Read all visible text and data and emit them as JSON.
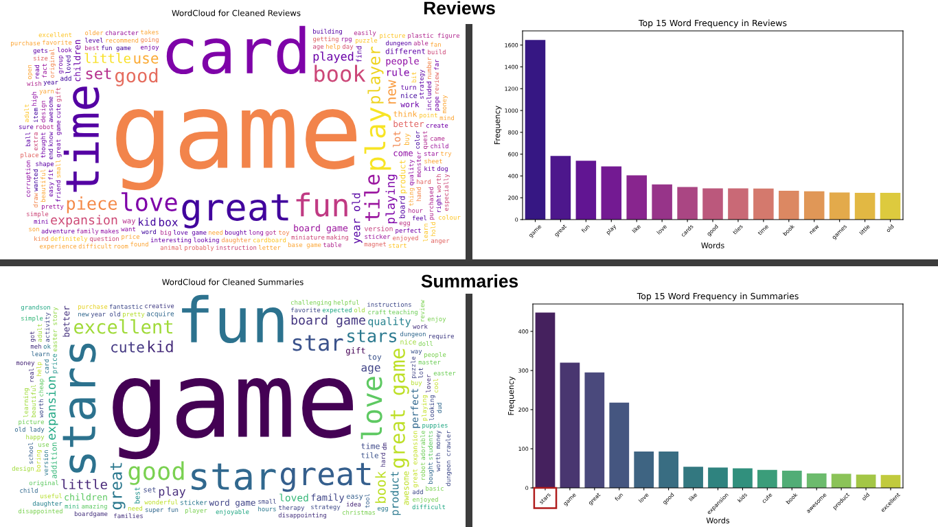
{
  "chart_data": [
    {
      "type": "other",
      "title": "WordCloud for Cleaned Reviews",
      "categories": [
        "game",
        "card",
        "time",
        "great",
        "fun",
        "play",
        "love",
        "book",
        "tile",
        "good",
        "piece",
        "player",
        "set",
        "use",
        "new",
        "little",
        "expansion",
        "playing",
        "played",
        "box",
        "year old",
        "kid",
        "rule",
        "lot",
        "people",
        "board game",
        "children",
        "better",
        "come",
        "product",
        "think",
        "work",
        "board",
        "different",
        "way",
        "find",
        "nice",
        "version",
        "buy",
        "turn",
        "add",
        "loved",
        "egg",
        "want",
        "quality",
        "enjoy",
        "fun game",
        "great game",
        "bought",
        "age",
        "small",
        "look",
        "long",
        "cute",
        "need",
        "got",
        "thing",
        "love game",
        "help",
        "friend",
        "word",
        "makes",
        "color",
        "best",
        "family",
        "gift",
        "perfect",
        "adventure",
        "monster",
        "hour",
        "pretty",
        "group",
        "toy",
        "miniature",
        "bit",
        "dungeon",
        "recommend",
        "know",
        "year",
        "robot",
        "end",
        "making",
        "hard",
        "awesome",
        "day",
        "shape",
        "hand",
        "sticker",
        "feel",
        "fit",
        "price",
        "point",
        "easy",
        "big",
        "daughter",
        "strategy",
        "getting",
        "favorite",
        "original",
        "puzzle",
        "looking",
        "quest",
        "yarn",
        "cardboard",
        "beautiful",
        "going",
        "interesting",
        "included",
        "able",
        "star",
        "thought",
        "level",
        "question",
        "purchased",
        "enjoyed",
        "definitely",
        "design",
        "sheet",
        "kit",
        "fact",
        "create",
        "base game",
        "number",
        "simple",
        "came",
        "learn",
        "child",
        "picture",
        "extra",
        "mini",
        "size",
        "item",
        "gets",
        "character",
        "wanted",
        "found",
        "place",
        "page",
        "wish",
        "kind",
        "high",
        "rpg",
        "plastic figure",
        "review",
        "table",
        "excellent",
        "read",
        "building",
        "instruction",
        "worth",
        "takes",
        "probably",
        "draw",
        "magnet",
        "build",
        "hold",
        "easily",
        "letter",
        "right",
        "dog",
        "sure",
        "corruption",
        "older",
        "fan",
        "far",
        "animal",
        "room",
        "ball",
        "difficult",
        "mind",
        "money",
        "start",
        "try",
        "adult",
        "anger",
        "son",
        "especially",
        "experience",
        "purchase",
        "open",
        "colour"
      ],
      "colors": [
        "#f2844b",
        "#7e03a8",
        "#5402a3",
        "#41049d",
        "#c03a83",
        "#f7e425",
        "#7e03a8",
        "#cc4778",
        "#9a169f",
        "#e56b5d",
        "#f48a48",
        "#eed320",
        "#b52f8c",
        "#fbaa35",
        "#f99b3e",
        "#f8e024",
        "#cd4a76",
        "#7e03a8",
        "#6a00a8",
        "#41049d",
        "#5402a3",
        "#41049d",
        "#7e03a8",
        "#f2844b",
        "#8f0da4",
        "#9c179e",
        "#6a00a8",
        "#e16462",
        "#8f0da4",
        "#fcce25",
        "#fca636",
        "#6a00a8",
        "#5402a3",
        "#5c01a6",
        "#b52f8c",
        "#5c01a6",
        "#41049d",
        "#c5407e",
        "#fdb32f",
        "#5c01a6",
        "#3e049c",
        "#41049d",
        "#bd3786",
        "#8f0da4",
        "#8f0da4",
        "#7201a8",
        "#41049d",
        "#6a00a8",
        "#6a00a8",
        "#cc4778",
        "#fdb42f",
        "#7201a8",
        "#8f0da4",
        "#6a00a8",
        "#fca636",
        "#b12a90",
        "#fca636",
        "#5c01a6",
        "#fca636",
        "#6a00a8",
        "#3e049c",
        "#8f0da4",
        "#41049d",
        "#b12a90",
        "#9c179e",
        "#cc4778",
        "#7201a8",
        "#7201a8",
        "#9c179e",
        "#b12a90",
        "#9c179e",
        "#6a00a8",
        "#f2844b",
        "#cc4778",
        "#fdc527",
        "#5402a3",
        "#fca636",
        "#5c01a6",
        "#41049d",
        "#b12a90",
        "#5402a3",
        "#cc4778",
        "#e16462",
        "#5c01a6",
        "#d5536f",
        "#5c01a6",
        "#f2844b",
        "#9c179e",
        "#5402a3",
        "#6a00a8",
        "#fca636",
        "#fdc527",
        "#6a00a8",
        "#b12a90",
        "#f89540",
        "#5c01a6",
        "#e16462",
        "#fca636",
        "#f2844b",
        "#fdc527",
        "#6a00a8",
        "#b12a90",
        "#fca636",
        "#fdc527",
        "#fca636",
        "#f2844b",
        "#6a00a8",
        "#6a00a8",
        "#b12a90",
        "#9c179e",
        "#7201a8",
        "#5402a3",
        "#cc4778",
        "#b12a90",
        "#e16462",
        "#fdc527",
        "#9c179e",
        "#fca636",
        "#7201a8",
        "#9c179e",
        "#7201a8",
        "#fca636",
        "#f2844b",
        "#cc4778",
        "#b12a90",
        "#fdc527",
        "#9c179e",
        "#fdc527",
        "#cc4778",
        "#7201a8",
        "#e16462",
        "#41049d",
        "#5c01a6",
        "#9c179e",
        "#41049d",
        "#fca636",
        "#e16462",
        "#7201a8",
        "#b12a90",
        "#f2844b",
        "#8f0da4",
        "#9c179e",
        "#b12a90",
        "#e16462",
        "#b12a90",
        "#fdc527",
        "#7201a8",
        "#5402a3",
        "#cc4778",
        "#cc4778",
        "#fca636",
        "#e16462",
        "#f2844b",
        "#e16462",
        "#cc4778",
        "#fdc527",
        "#b12a90",
        "#fca636",
        "#6a00a8",
        "#5c01a6",
        "#5c01a6",
        "#8f0da4",
        "#fca636",
        "#fca636",
        "#7201a8",
        "#e16462",
        "#fca636",
        "#5c01a6",
        "#fca636",
        "#fca636",
        "#fca636",
        "#fdc527",
        "#fca636",
        "#fdc527",
        "#e16462",
        "#fca636",
        "#cc4778",
        "#fca636",
        "#fca636",
        "#fca636",
        "#fdc527"
      ]
    },
    {
      "type": "bar",
      "title": "Top 15 Word Frequency in Reviews",
      "xlabel": "Words",
      "ylabel": "Frequency",
      "annotations": [
        "Reviews"
      ],
      "categories": [
        "game",
        "great",
        "fun",
        "play",
        "like",
        "love",
        "cards",
        "good",
        "tiles",
        "time",
        "book",
        "new",
        "games",
        "little",
        "old"
      ],
      "values": [
        1646,
        583,
        540,
        487,
        405,
        322,
        299,
        286,
        286,
        284,
        264,
        259,
        249,
        246,
        246
      ],
      "colors": [
        "#361783",
        "#4d178c",
        "#611592",
        "#731a92",
        "#88258e",
        "#973489",
        "#aa4683",
        "#bb587c",
        "#c96976",
        "#d4796d",
        "#dc8862",
        "#e09757",
        "#e3aa4b",
        "#e2b843",
        "#ddca3e"
      ],
      "ylim": [
        0,
        1730
      ],
      "yticks": [
        0,
        200,
        400,
        600,
        800,
        1000,
        1200,
        1400,
        1600
      ]
    },
    {
      "type": "other",
      "title": "WordCloud for Cleaned Summaries",
      "categories": [
        "game",
        "fun",
        "stars",
        "star",
        "great",
        "love",
        "good",
        "star",
        "great game",
        "excellent",
        "stars",
        "great",
        "kid",
        "cute",
        "book",
        "little",
        "board game",
        "expansion",
        "play",
        "age",
        "product",
        "quality",
        "loved",
        "perfect",
        "family",
        "children",
        "better",
        "word game",
        "gift",
        "awesome",
        "time",
        "toy",
        "addition",
        "tile",
        "set",
        "best",
        "easy",
        "nice",
        "price",
        "acquire",
        "sticker",
        "great expansion",
        "wonderful",
        "dungeon",
        "hard",
        "small",
        "pretty",
        "easter story",
        "buy",
        "year old",
        "puzzle",
        "useful",
        "favorite",
        "card",
        "original",
        "way",
        "tool",
        "use",
        "craft",
        "version",
        "learn",
        "expected",
        "lot",
        "ok",
        "teaching",
        "worth",
        "therapy",
        "new",
        "dm",
        "add",
        "idea",
        "playing",
        "strategy",
        "daughter",
        "adorable",
        "work",
        "amazing",
        "activity",
        "super fun",
        "master",
        "cheap",
        "picture",
        "creative",
        "beautiful",
        "enjoyed",
        "fantastic",
        "robot",
        "old lady",
        "happy",
        "lover",
        "puppies",
        "enjoyable",
        "help",
        "doll",
        "old",
        "boring",
        "challenging",
        "hours",
        "looking",
        "player",
        "purchase",
        "students",
        "difficult",
        "people",
        "adult",
        "grandson",
        "instructions",
        "review",
        "need",
        "christmas",
        "real",
        "meh",
        "mini",
        "bought",
        "disappointing",
        "disappointed",
        "school",
        "simple",
        "basic",
        "cool",
        "money",
        "helpful",
        "worth money",
        "boardgame",
        "require",
        "learning",
        "child",
        "easter",
        "dungeon crawler",
        "families",
        "egg",
        "got",
        "design",
        "enjoy",
        "dud"
      ],
      "colors": [
        "#440154",
        "#2c728e",
        "#2c728e",
        "#31688e",
        "#355f8d",
        "#5ec962",
        "#7ad151",
        "#3b528b",
        "#bddf26",
        "#a0da39",
        "#2a788e",
        "#2a788e",
        "#472d7b",
        "#443983",
        "#bddf26",
        "#482878",
        "#453781",
        "#22a884",
        "#472d7b",
        "#414487",
        "#2a788e",
        "#26828e",
        "#35b779",
        "#31688e",
        "#404688",
        "#5ec962",
        "#46327e",
        "#414487",
        "#440154",
        "#bddf26",
        "#3e4989",
        "#3b528b",
        "#35b779",
        "#3b528b",
        "#3e4989",
        "#21918c",
        "#355f8d",
        "#9fda3a",
        "#21918c",
        "#31688e",
        "#2a788e",
        "#c2df23",
        "#bddf26",
        "#31688e",
        "#46327e",
        "#404688",
        "#b5de2b",
        "#90d743",
        "#b5de2b",
        "#3e4989",
        "#414487",
        "#b5de2b",
        "#3e4989",
        "#2a788e",
        "#5ec962",
        "#3b528b",
        "#355f8d",
        "#7ad151",
        "#6ece58",
        "#2a788e",
        "#31688e",
        "#22a884",
        "#414487",
        "#2a788e",
        "#6ece58",
        "#3e4989",
        "#404688",
        "#31688e",
        "#46327e",
        "#3e4989",
        "#482878",
        "#c2df23",
        "#3e4989",
        "#26828e",
        "#6ece58",
        "#46327e",
        "#5ec962",
        "#404688",
        "#31688e",
        "#6ece58",
        "#5ec962",
        "#6ece58",
        "#433e85",
        "#9fda3a",
        "#7ad151",
        "#3e4989",
        "#7ad151",
        "#31688e",
        "#9fda3a",
        "#46327e",
        "#22a884",
        "#22a884",
        "#bddf26",
        "#7ad151",
        "#9fda3a",
        "#c2df23",
        "#7ad151",
        "#2a788e",
        "#3e4989",
        "#7ad151",
        "#e5d11f",
        "#5ec962",
        "#22a884",
        "#7ad151",
        "#9fda3a",
        "#22a884",
        "#3e4989",
        "#7ad151",
        "#bddf26",
        "#7ad151",
        "#46327e",
        "#46327e",
        "#35b779",
        "#31688e",
        "#46327e",
        "#7ad151",
        "#355f8d",
        "#35b779",
        "#7ad151",
        "#c2df23",
        "#482878",
        "#7ad151",
        "#3e4989",
        "#46327e",
        "#433e85",
        "#9fda3a",
        "#31688e",
        "#6ece58",
        "#3e4989",
        "#46327e",
        "#2a788e",
        "#46327e",
        "#9fda3a",
        "#7ad151",
        "#31688e"
      ]
    },
    {
      "type": "bar",
      "title": "Top 15 Word Frequency in Summaries",
      "xlabel": "Words",
      "ylabel": "Frequency",
      "annotations": [
        "Summaries"
      ],
      "categories": [
        "stars",
        "game",
        "great",
        "fun",
        "love",
        "good",
        "like",
        "expansion",
        "kids",
        "cute",
        "book",
        "awesome",
        "product",
        "old",
        "excellent"
      ],
      "values": [
        448,
        320,
        295,
        218,
        93,
        93,
        54,
        52,
        50,
        46,
        44,
        37,
        36,
        34,
        33
      ],
      "colors": [
        "#45215e",
        "#493670",
        "#4a497c",
        "#455680",
        "#3e6482",
        "#396d82",
        "#337880",
        "#2f837f",
        "#31907d",
        "#3b9d7a",
        "#51ad76",
        "#6cbb6d",
        "#8bc358",
        "#a3c646",
        "#c1ca3d"
      ],
      "ylim": [
        0,
        470
      ],
      "yticks": [
        0,
        100,
        200,
        300,
        400
      ]
    }
  ]
}
